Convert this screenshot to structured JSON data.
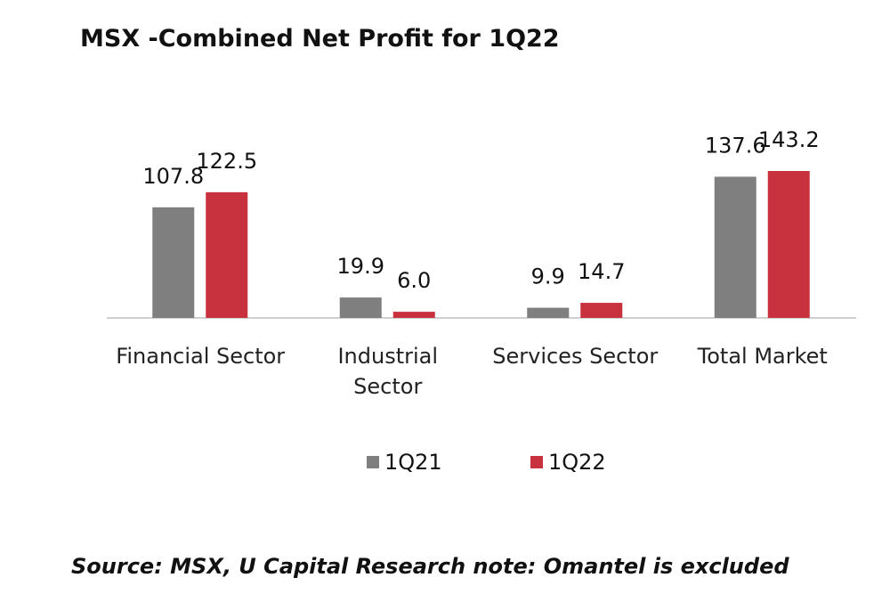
{
  "chart_data": {
    "type": "bar",
    "title": "MSX -Combined Net Profit for 1Q22",
    "source": "Source: MSX, U Capital Research note: Omantel is excluded",
    "categories": [
      "Financial Sector",
      "Industrial Sector",
      "Services Sector",
      "Total Market"
    ],
    "series": [
      {
        "name": "1Q21",
        "color": "#7f7f7f",
        "values": [
          107.8,
          19.9,
          9.9,
          137.6
        ]
      },
      {
        "name": "1Q22",
        "color": "#c8313e",
        "values": [
          122.5,
          6.0,
          14.7,
          143.2
        ],
        "value_labels": [
          "122.5",
          "6.0",
          "14.7",
          "143.2"
        ]
      }
    ]
  }
}
